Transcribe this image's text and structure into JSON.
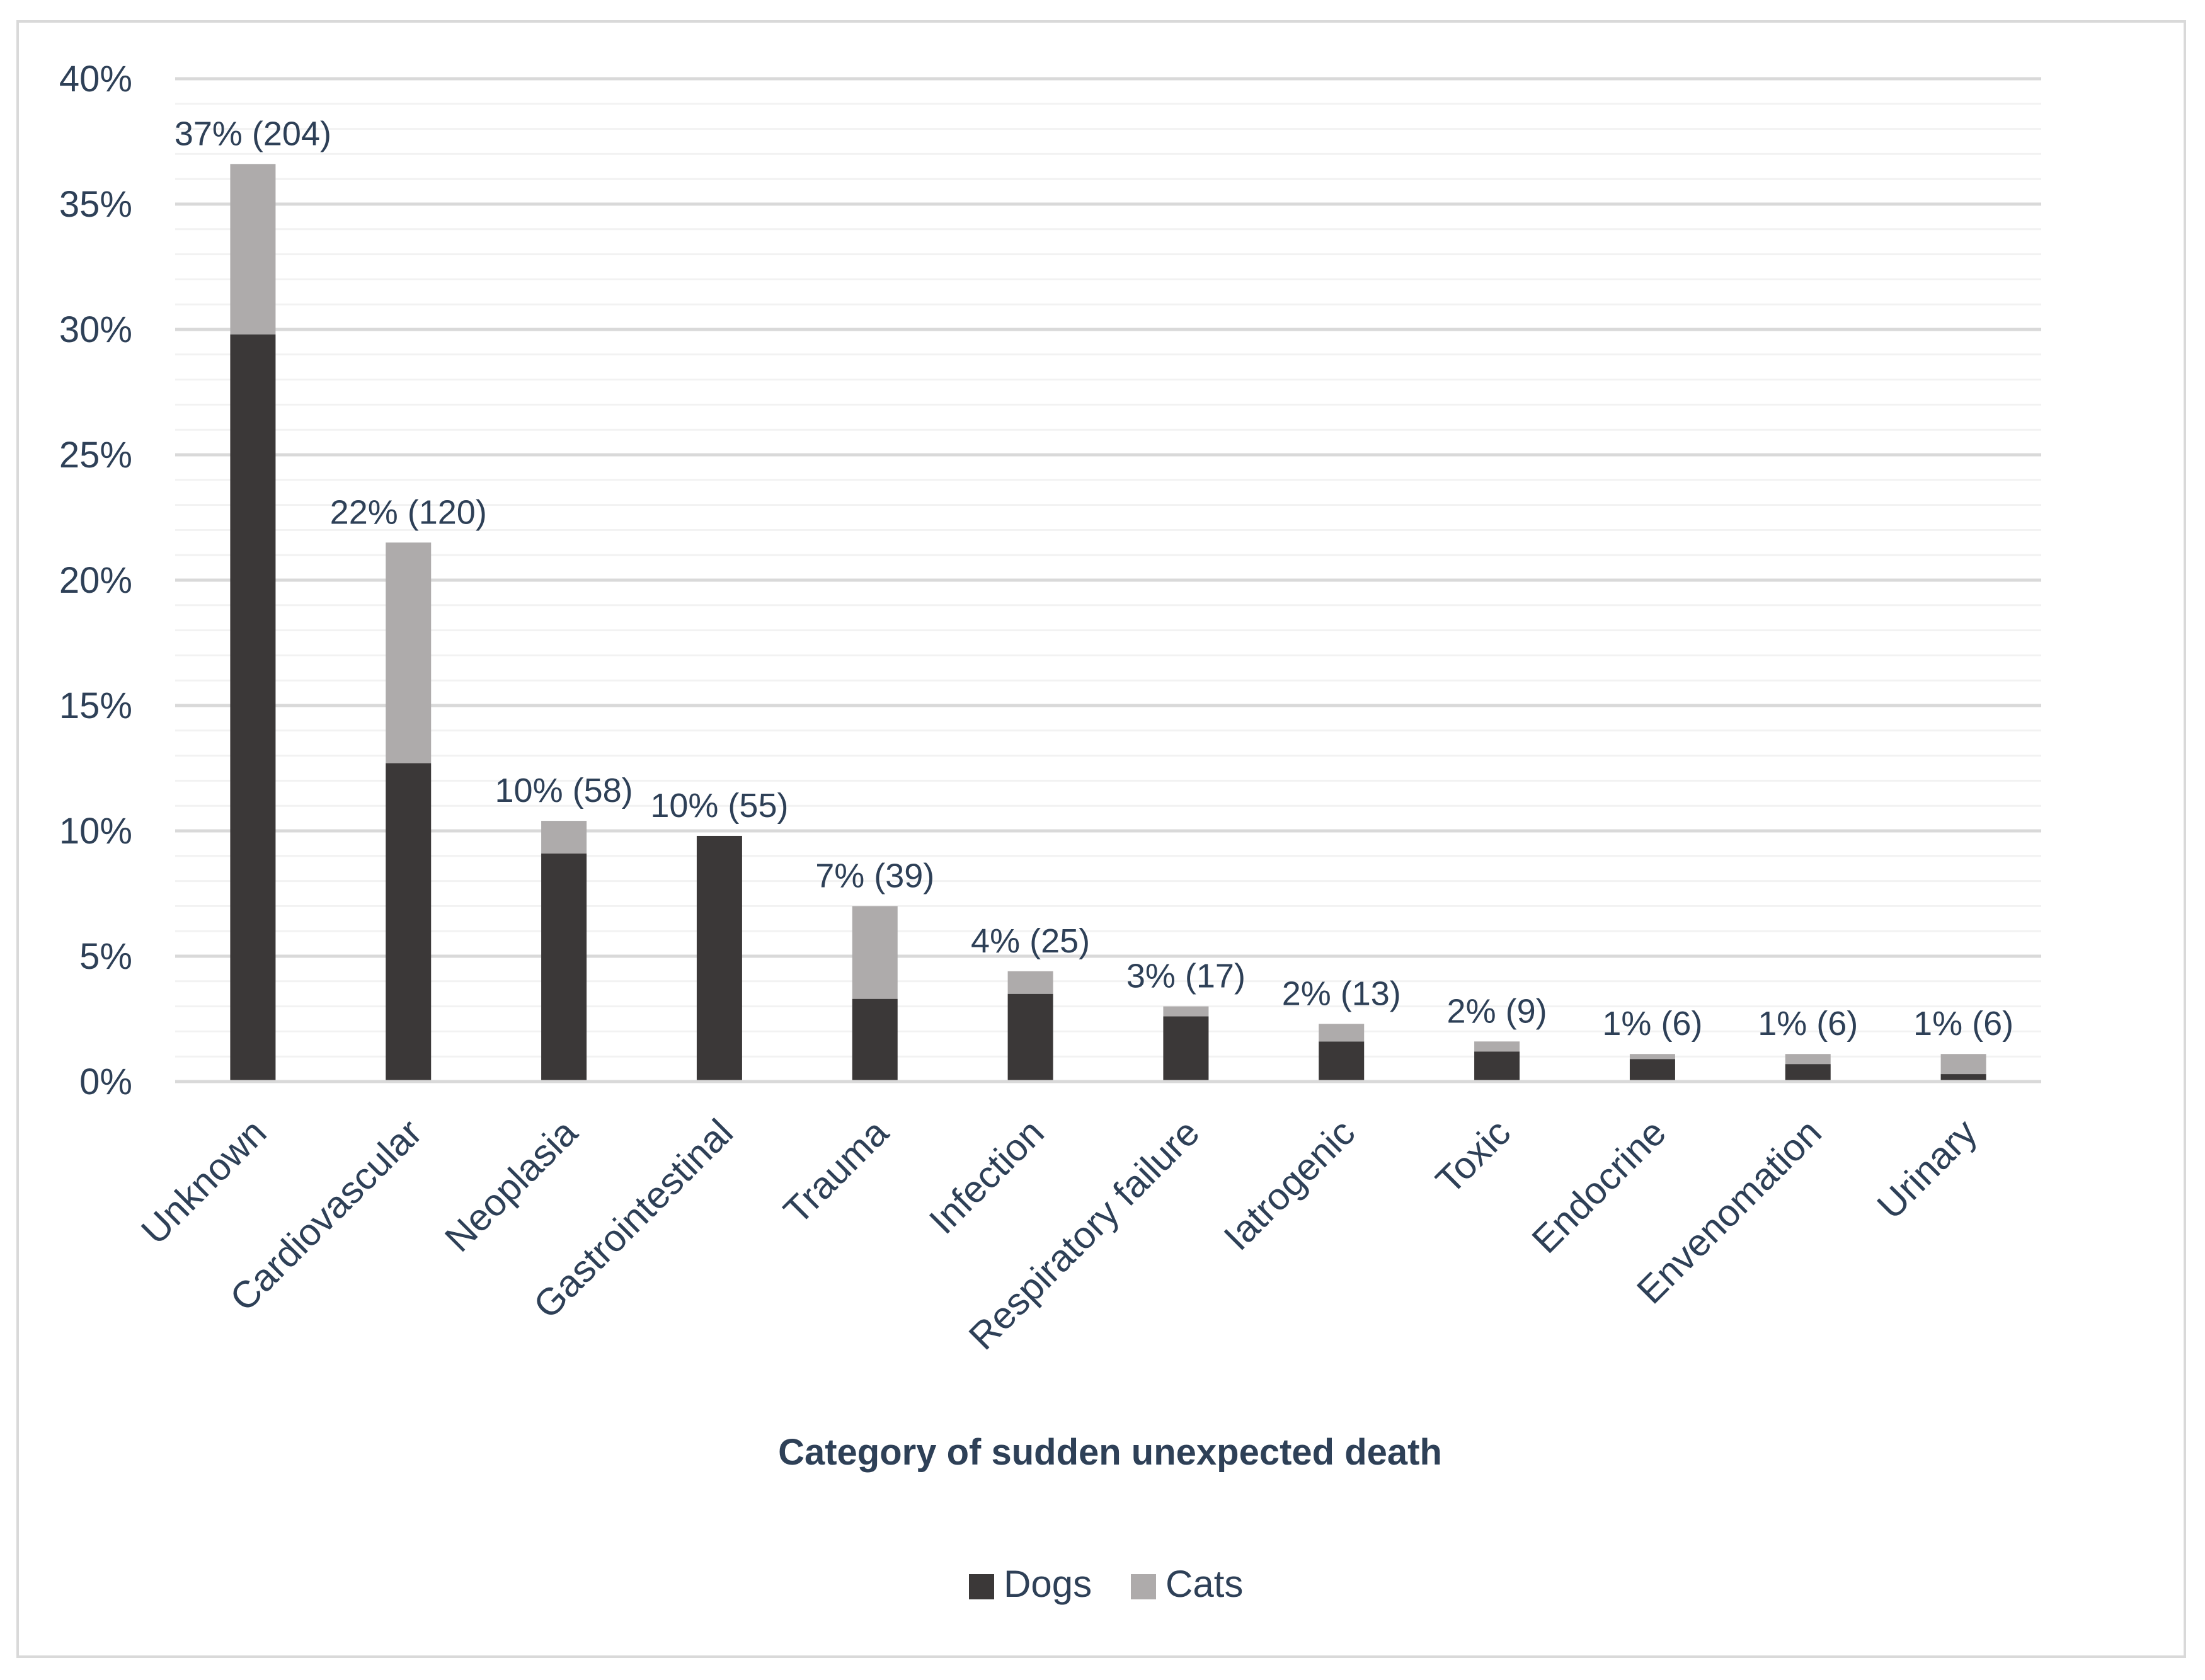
{
  "chart_data": {
    "type": "bar",
    "stacked": true,
    "title": "",
    "xlabel": "Category of sudden unexpected death",
    "ylabel": "",
    "ylim": [
      0,
      40
    ],
    "y_unit": "%",
    "y_ticks": [
      "0%",
      "5%",
      "10%",
      "15%",
      "20%",
      "25%",
      "30%",
      "35%",
      "40%"
    ],
    "grid": true,
    "legend_position": "bottom",
    "categories": [
      "Unknown",
      "Cardiovascular",
      "Neoplasia",
      "Gastrointestinal",
      "Trauma",
      "Infection",
      "Respiratory failure",
      "Iatrogenic",
      "Toxic",
      "Endocrine",
      "Envenomation",
      "Urinary"
    ],
    "series": [
      {
        "name": "Dogs",
        "color": "#3b3838",
        "values": [
          29.8,
          12.7,
          9.1,
          9.8,
          3.3,
          3.5,
          2.6,
          1.6,
          1.2,
          0.9,
          0.7,
          0.3
        ]
      },
      {
        "name": "Cats",
        "color": "#aeabab",
        "values": [
          6.8,
          8.8,
          1.3,
          0.0,
          3.7,
          0.9,
          0.4,
          0.7,
          0.4,
          0.2,
          0.4,
          0.8
        ]
      }
    ],
    "data_labels": [
      "37% (204)",
      "22% (120)",
      "10% (58)",
      "10% (55)",
      "7% (39)",
      "4% (25)",
      "3% (17)",
      "2% (13)",
      "2% (9)",
      "1% (6)",
      "1% (6)",
      "1% (6)"
    ]
  }
}
